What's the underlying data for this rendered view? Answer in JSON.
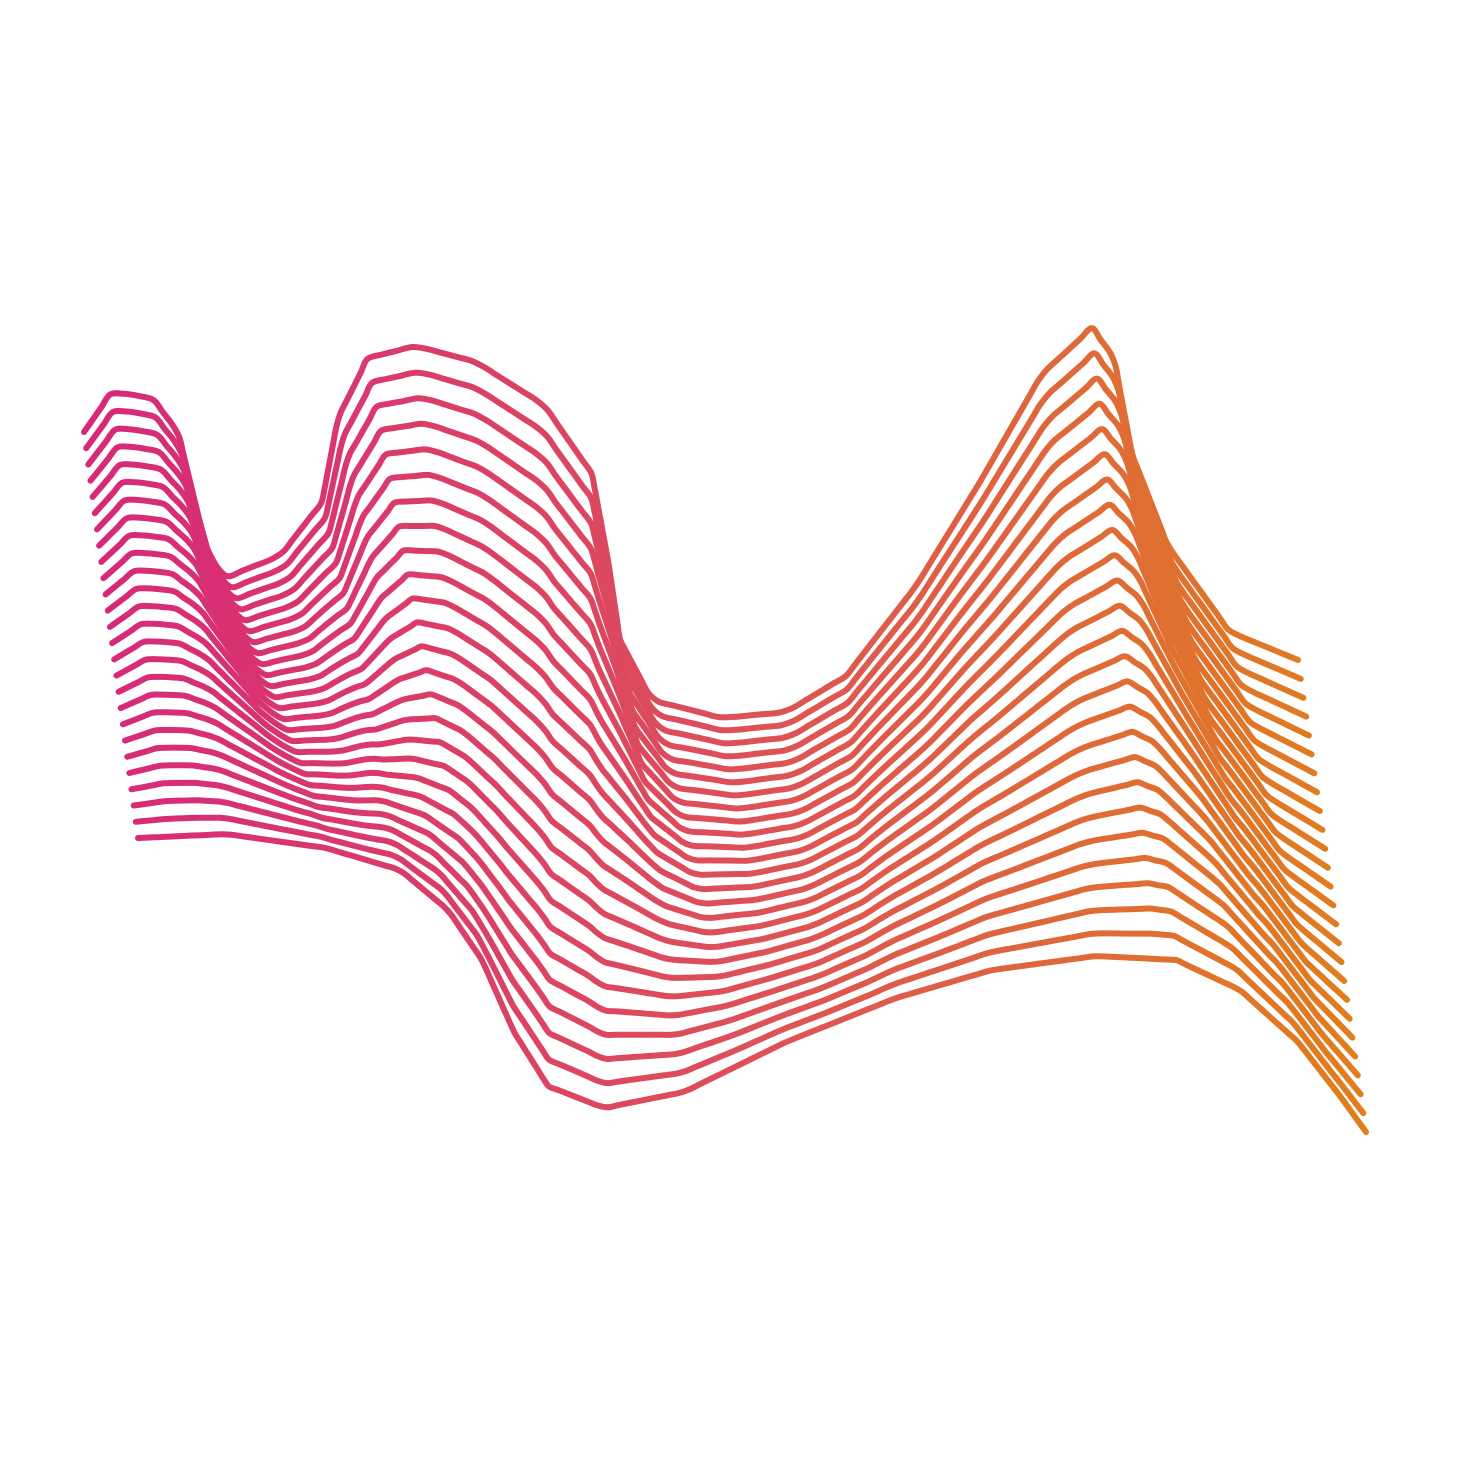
{
  "artwork": {
    "subject": "wave-line-illustration",
    "line_count": 26,
    "colors": {
      "background": "#ffffff",
      "gradient_start": "#d6287a",
      "gradient_mid": "#dd4f5a",
      "gradient_end": "#e07f1c"
    }
  }
}
